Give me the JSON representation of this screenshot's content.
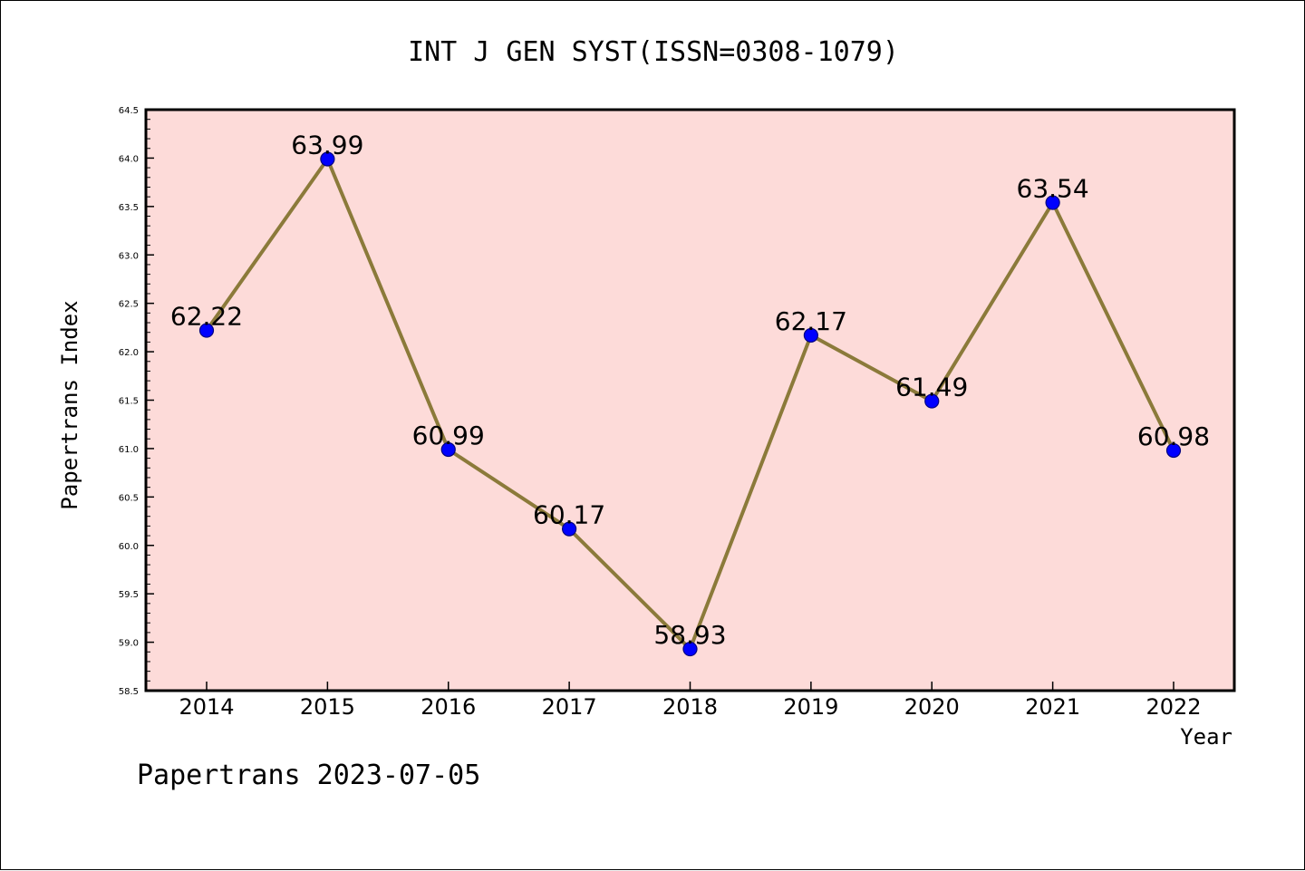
{
  "chart_data": {
    "type": "line",
    "title": "INT J GEN SYST(ISSN=0308-1079)",
    "xlabel": "Year",
    "ylabel": "Papertrans Index",
    "categories": [
      "2014",
      "2015",
      "2016",
      "2017",
      "2018",
      "2019",
      "2020",
      "2021",
      "2022"
    ],
    "series": [
      {
        "values": [
          62.22,
          63.99,
          60.99,
          60.17,
          58.93,
          62.17,
          61.49,
          63.54,
          60.98
        ]
      }
    ],
    "data_labels": [
      "62.22",
      "63.99",
      "60.99",
      "60.17",
      "58.93",
      "62.17",
      "61.49",
      "63.54",
      "60.98"
    ],
    "ylim": [
      58.5,
      64.5
    ],
    "yticks": [
      "58.5",
      "59.0",
      "59.5",
      "60.0",
      "60.5",
      "61.0",
      "61.5",
      "62.0",
      "62.5",
      "63.0",
      "63.5",
      "64.0",
      "64.5"
    ],
    "grid": false,
    "legend": false,
    "colors": {
      "plot_background": "#fddbd9",
      "line": "#8b7a3a",
      "marker": "#0000ff",
      "marker_edge": "#000080"
    }
  },
  "footer": {
    "watermark": "Papertrans 2023-07-05"
  }
}
